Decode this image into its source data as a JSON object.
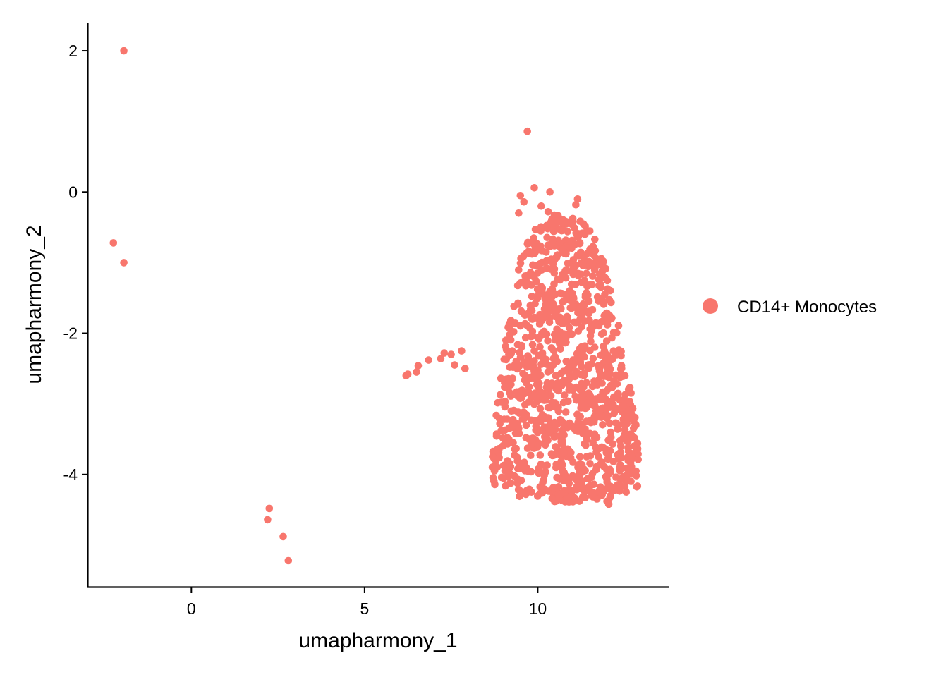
{
  "chart_data": {
    "type": "scatter",
    "title": "",
    "xlabel": "umapharmony_1",
    "ylabel": "umapharmony_2",
    "xlim": [
      -3.0,
      13.8
    ],
    "ylim": [
      -5.6,
      2.4
    ],
    "xticks": [
      0,
      5,
      10
    ],
    "yticks": [
      -4,
      -2,
      0,
      2
    ],
    "xtick_labels": [
      "0",
      "5",
      "10"
    ],
    "ytick_labels": [
      "-4",
      "-2",
      "0",
      "2"
    ],
    "grid": false,
    "legend_position": "right",
    "point_color": "#F8766D",
    "series": [
      {
        "name": "CD14+ Monocytes",
        "color": "#F8766D",
        "outliers": [
          {
            "x": -1.95,
            "y": 2.0
          },
          {
            "x": -2.25,
            "y": -0.72
          },
          {
            "x": -1.95,
            "y": -1.0
          },
          {
            "x": 9.7,
            "y": 0.86
          },
          {
            "x": 2.25,
            "y": -4.48
          },
          {
            "x": 2.2,
            "y": -4.64
          },
          {
            "x": 2.65,
            "y": -4.88
          },
          {
            "x": 2.8,
            "y": -5.22
          },
          {
            "x": 6.2,
            "y": -2.6
          },
          {
            "x": 6.25,
            "y": -2.58
          },
          {
            "x": 6.5,
            "y": -2.55
          },
          {
            "x": 6.55,
            "y": -2.46
          },
          {
            "x": 6.85,
            "y": -2.38
          },
          {
            "x": 7.2,
            "y": -2.36
          },
          {
            "x": 7.3,
            "y": -2.28
          },
          {
            "x": 7.5,
            "y": -2.3
          },
          {
            "x": 7.8,
            "y": -2.25
          },
          {
            "x": 7.9,
            "y": -2.5
          },
          {
            "x": 7.6,
            "y": -2.45
          },
          {
            "x": 9.5,
            "y": -0.05
          },
          {
            "x": 9.9,
            "y": 0.06
          },
          {
            "x": 10.35,
            "y": 0.0
          },
          {
            "x": 10.1,
            "y": -0.2
          },
          {
            "x": 10.3,
            "y": -0.28
          },
          {
            "x": 11.15,
            "y": -0.1
          },
          {
            "x": 11.1,
            "y": -0.18
          },
          {
            "x": 9.45,
            "y": -0.3
          },
          {
            "x": 9.6,
            "y": -0.14
          },
          {
            "x": 12.0,
            "y": -4.38
          },
          {
            "x": 12.05,
            "y": -4.42
          },
          {
            "x": 12.1,
            "y": -4.3
          }
        ],
        "cluster": {
          "count": 1150,
          "center": {
            "x": 10.85,
            "y": -2.55
          },
          "x_range": [
            7.8,
            12.9
          ],
          "y_range": [
            -4.4,
            -0.3
          ]
        }
      }
    ]
  }
}
